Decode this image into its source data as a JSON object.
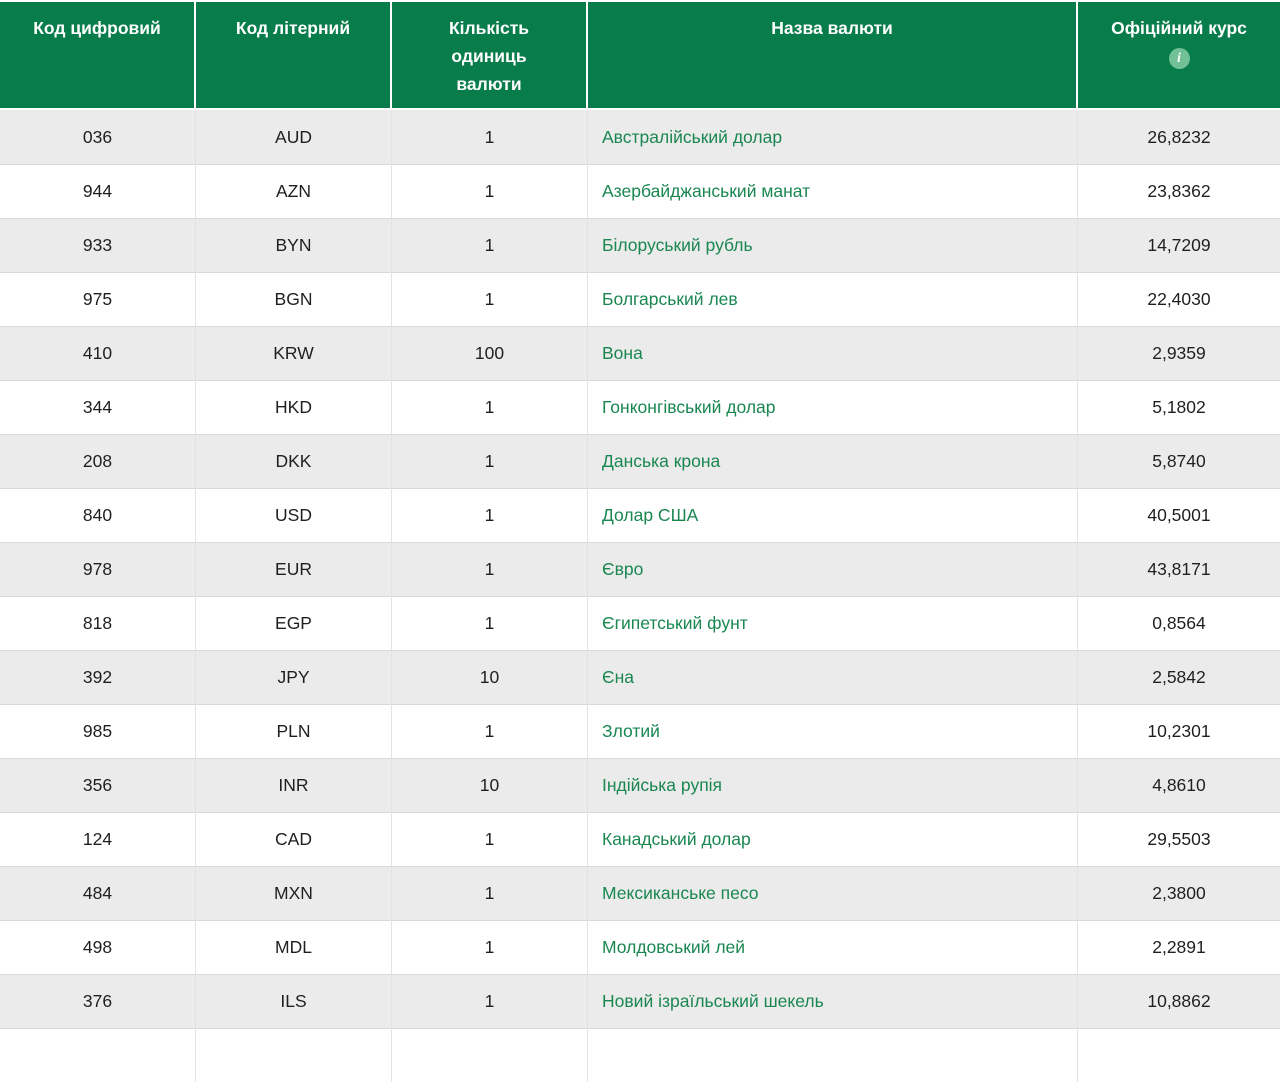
{
  "table": {
    "columns": [
      {
        "key": "numeric_code",
        "label": "Код цифровий"
      },
      {
        "key": "letter_code",
        "label": "Код літерний"
      },
      {
        "key": "units",
        "label": "Кількість одиниць валюти"
      },
      {
        "key": "name",
        "label": "Назва валюти"
      },
      {
        "key": "rate",
        "label": "Офіційний курс"
      }
    ],
    "icons": {
      "info_glyph": "i"
    },
    "rows": [
      {
        "numeric_code": "036",
        "letter_code": "AUD",
        "units": "1",
        "name": "Австралійський долар",
        "rate": "26,8232"
      },
      {
        "numeric_code": "944",
        "letter_code": "AZN",
        "units": "1",
        "name": "Азербайджанський манат",
        "rate": "23,8362"
      },
      {
        "numeric_code": "933",
        "letter_code": "BYN",
        "units": "1",
        "name": "Білоруський рубль",
        "rate": "14,7209"
      },
      {
        "numeric_code": "975",
        "letter_code": "BGN",
        "units": "1",
        "name": "Болгарський лев",
        "rate": "22,4030"
      },
      {
        "numeric_code": "410",
        "letter_code": "KRW",
        "units": "100",
        "name": "Вона",
        "rate": "2,9359"
      },
      {
        "numeric_code": "344",
        "letter_code": "HKD",
        "units": "1",
        "name": "Гонконгівський долар",
        "rate": "5,1802"
      },
      {
        "numeric_code": "208",
        "letter_code": "DKK",
        "units": "1",
        "name": "Данська крона",
        "rate": "5,8740"
      },
      {
        "numeric_code": "840",
        "letter_code": "USD",
        "units": "1",
        "name": "Долар США",
        "rate": "40,5001"
      },
      {
        "numeric_code": "978",
        "letter_code": "EUR",
        "units": "1",
        "name": "Євро",
        "rate": "43,8171"
      },
      {
        "numeric_code": "818",
        "letter_code": "EGP",
        "units": "1",
        "name": "Єгипетський фунт",
        "rate": "0,8564"
      },
      {
        "numeric_code": "392",
        "letter_code": "JPY",
        "units": "10",
        "name": "Єна",
        "rate": "2,5842"
      },
      {
        "numeric_code": "985",
        "letter_code": "PLN",
        "units": "1",
        "name": "Злотий",
        "rate": "10,2301"
      },
      {
        "numeric_code": "356",
        "letter_code": "INR",
        "units": "10",
        "name": "Індійська рупія",
        "rate": "4,8610"
      },
      {
        "numeric_code": "124",
        "letter_code": "CAD",
        "units": "1",
        "name": "Канадський долар",
        "rate": "29,5503"
      },
      {
        "numeric_code": "484",
        "letter_code": "MXN",
        "units": "1",
        "name": "Мексиканське песо",
        "rate": "2,3800"
      },
      {
        "numeric_code": "498",
        "letter_code": "MDL",
        "units": "1",
        "name": "Молдовський лей",
        "rate": "2,2891"
      },
      {
        "numeric_code": "376",
        "letter_code": "ILS",
        "units": "1",
        "name": "Новий ізраїльський шекель",
        "rate": "10,8862"
      }
    ]
  },
  "colors": {
    "header_bg": "#087c4a",
    "row_alt_bg": "#ebebeb",
    "currency_link": "#1a8751",
    "info_icon_bg": "#72c096"
  }
}
